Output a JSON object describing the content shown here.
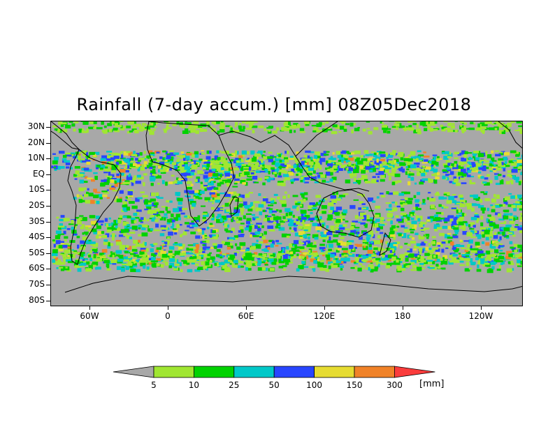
{
  "title": "Rainfall (7-day accum.) [mm] 08Z05Dec2018",
  "lat_labels": [
    "30N",
    "20N",
    "10N",
    "EQ",
    "10S",
    "20S",
    "30S",
    "40S",
    "50S",
    "60S",
    "70S",
    "80S"
  ],
  "lon_labels": [
    "60W",
    "0",
    "60E",
    "120E",
    "180",
    "120W"
  ],
  "colorbar": {
    "levels": [
      "5",
      "10",
      "25",
      "50",
      "100",
      "150",
      "300"
    ],
    "units": "[mm]",
    "colors": [
      "#a8a8a8",
      "#a0e632",
      "#00d200",
      "#00c8c8",
      "#2846ff",
      "#e6dc32",
      "#f08228",
      "#fa3c3c"
    ]
  },
  "colors": {
    "land_background": "#a8a8a8",
    "coastline": "#000000"
  }
}
